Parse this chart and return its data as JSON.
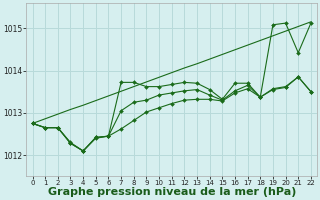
{
  "background_color": "#d6efef",
  "grid_color": "#b8dada",
  "line_color": "#1a6b1a",
  "xlabel": "Graphe pression niveau de la mer (hPa)",
  "xlabel_fontsize": 8,
  "xlim": [
    -0.5,
    22.5
  ],
  "ylim": [
    1011.5,
    1015.6
  ],
  "yticks": [
    1012,
    1013,
    1014,
    1015
  ],
  "xticks": [
    0,
    1,
    2,
    3,
    4,
    5,
    6,
    7,
    8,
    9,
    10,
    11,
    12,
    13,
    14,
    15,
    16,
    17,
    18,
    19,
    20,
    21,
    22
  ],
  "series_straight": [
    1012.75,
    1012.86,
    1012.97,
    1013.08,
    1013.18,
    1013.29,
    1013.4,
    1013.51,
    1013.62,
    1013.73,
    1013.84,
    1013.95,
    1014.06,
    1014.16,
    1014.27,
    1014.38,
    1014.49,
    1014.6,
    1014.71,
    1014.82,
    1014.93,
    1015.04,
    1015.15
  ],
  "series_top": [
    1012.75,
    1012.65,
    1012.65,
    1012.3,
    1012.1,
    1012.4,
    1012.45,
    1013.72,
    1013.72,
    1013.62,
    1013.62,
    1013.67,
    1013.72,
    1013.7,
    1013.55,
    1013.32,
    1013.7,
    1013.7,
    1013.37,
    1015.08,
    1015.12,
    1014.42,
    1015.12
  ],
  "series_mid": [
    1012.75,
    1012.65,
    1012.65,
    1012.28,
    1012.1,
    1012.42,
    1012.45,
    1013.05,
    1013.25,
    1013.3,
    1013.42,
    1013.47,
    1013.52,
    1013.55,
    1013.42,
    1013.3,
    1013.52,
    1013.65,
    1013.37,
    1013.55,
    1013.6,
    1013.85,
    1013.5
  ],
  "series_bottom": [
    1012.75,
    1012.65,
    1012.65,
    1012.28,
    1012.1,
    1012.42,
    1012.45,
    1012.62,
    1012.82,
    1013.02,
    1013.12,
    1013.22,
    1013.3,
    1013.32,
    1013.32,
    1013.28,
    1013.47,
    1013.57,
    1013.37,
    1013.57,
    1013.62,
    1013.85,
    1013.5
  ]
}
